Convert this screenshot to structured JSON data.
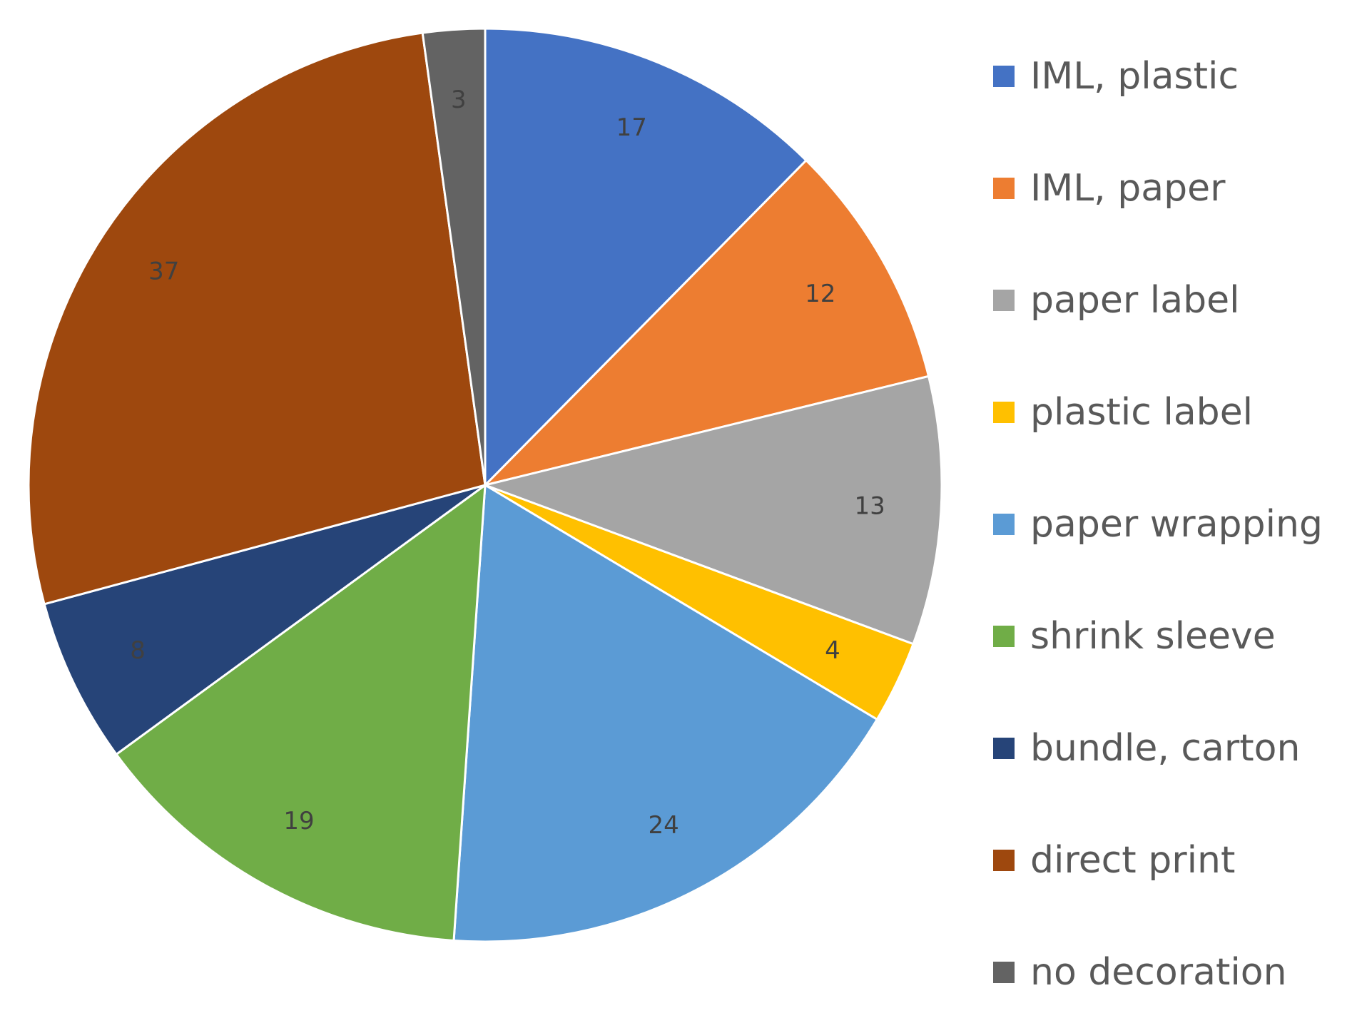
{
  "chart_data": {
    "type": "pie",
    "title": "",
    "start_angle_deg": 0,
    "direction": "clockwise",
    "legend_position": "right",
    "categories": [
      "IML, plastic",
      "IML, paper",
      "paper label",
      "plastic label",
      "paper wrapping",
      "shrink sleeve",
      "bundle, carton",
      "direct print",
      "no decoration"
    ],
    "values": [
      17,
      12,
      13,
      4,
      24,
      19,
      8,
      37,
      3
    ],
    "data_labels": [
      "17",
      "12",
      "13",
      "4",
      "24",
      "19",
      "8",
      "37",
      "3"
    ],
    "colors": [
      "#4472C4",
      "#ED7D31",
      "#A5A5A5",
      "#FFC000",
      "#5B9BD5",
      "#70AD47",
      "#264478",
      "#9E480E",
      "#636363"
    ]
  }
}
